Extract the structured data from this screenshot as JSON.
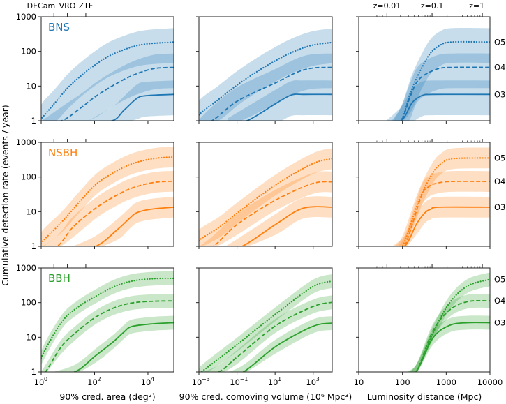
{
  "chart_data": {
    "type": "line",
    "ylabel": "Cumulative detection rate (events / year)",
    "yscale": "log",
    "ylim": [
      1,
      1000
    ],
    "yticks": [
      {
        "value": 1,
        "label": "1"
      },
      {
        "value": 10,
        "label": "10"
      },
      {
        "value": 100,
        "label": "100"
      },
      {
        "value": 1000,
        "label": "1000"
      }
    ],
    "point_format": "[log10 x, log10 rate]",
    "columns": [
      {
        "xlabel": "90% cred. area (deg²)",
        "xlim": [
          1,
          93000
        ],
        "xticks": [
          {
            "value": 1,
            "base": "10",
            "exp": "0"
          },
          {
            "value": 100,
            "base": "10",
            "exp": "2"
          },
          {
            "value": 10000,
            "base": "10",
            "exp": "4"
          }
        ],
        "top_ticks": [
          {
            "label": "DECam",
            "value": 3
          },
          {
            "label": "VRO",
            "value": 9.6
          },
          {
            "label": "ZTF",
            "value": 47
          }
        ]
      },
      {
        "xlabel": "90% cred. comoving volume (10⁶ Mpc³)",
        "xlim": [
          0.001,
          10000
        ],
        "xticks": [
          {
            "value": 0.001,
            "base": "10",
            "exp": "−3"
          },
          {
            "value": 0.1,
            "base": "10",
            "exp": "−1"
          },
          {
            "value": 10,
            "base": "10",
            "exp": "1"
          },
          {
            "value": 1000,
            "base": "10",
            "exp": "3"
          }
        ],
        "top_ticks": []
      },
      {
        "xlabel": "Luminosity distance (Mpc)",
        "xlim": [
          10,
          10000
        ],
        "xticks": [
          {
            "value": 10,
            "base": "10",
            "exp": ""
          },
          {
            "value": 100,
            "base": "100",
            "exp": ""
          },
          {
            "value": 1000,
            "base": "1000",
            "exp": ""
          },
          {
            "value": 10000,
            "base": "10000",
            "exp": ""
          }
        ],
        "top_ticks": [
          {
            "label": "z=0.01",
            "value": 44
          },
          {
            "label": "z=0.1",
            "value": 475
          },
          {
            "label": "z=1",
            "value": 6700
          }
        ]
      }
    ],
    "runs": [
      {
        "name": "O5",
        "style": "dotted"
      },
      {
        "name": "O4",
        "style": "dashed"
      },
      {
        "name": "O3",
        "style": "solid"
      }
    ],
    "rows": [
      {
        "label": "BNS",
        "color": "#1f77b4",
        "band_dex": [
          -0.6,
          0.4
        ],
        "panels": [
          {
            "O5": [
              [
                0,
                0.05
              ],
              [
                0.5,
                0.5
              ],
              [
                1,
                0.95
              ],
              [
                1.5,
                1.3
              ],
              [
                2,
                1.6
              ],
              [
                2.5,
                1.85
              ],
              [
                3,
                2.02
              ],
              [
                3.5,
                2.15
              ],
              [
                4,
                2.22
              ],
              [
                4.97,
                2.27
              ]
            ],
            "O4": [
              [
                0.77,
                0
              ],
              [
                1.5,
                0.38
              ],
              [
                2.04,
                0.7
              ],
              [
                2.7,
                1.02
              ],
              [
                3.4,
                1.3
              ],
              [
                4.2,
                1.5
              ],
              [
                4.97,
                1.54
              ]
            ],
            "O3": [
              [
                2.66,
                0
              ],
              [
                3.1,
                0.3
              ],
              [
                3.58,
                0.64
              ],
              [
                3.93,
                0.72
              ],
              [
                4.97,
                0.76
              ]
            ]
          },
          {
            "O5": [
              [
                -3,
                0.17
              ],
              [
                -2,
                0.6
              ],
              [
                -0.97,
                1.04
              ],
              [
                0,
                1.4
              ],
              [
                1.05,
                1.74
              ],
              [
                2,
                2.0
              ],
              [
                2.96,
                2.18
              ],
              [
                4,
                2.26
              ]
            ],
            "O4": [
              [
                -2.32,
                0
              ],
              [
                -0.97,
                0.57
              ],
              [
                1.05,
                1.1
              ],
              [
                2.2,
                1.41
              ],
              [
                3,
                1.52
              ],
              [
                4,
                1.54
              ]
            ],
            "O3": [
              [
                -0.48,
                0
              ],
              [
                1.05,
                0.5
              ],
              [
                1.85,
                0.74
              ],
              [
                2.5,
                0.76
              ],
              [
                4,
                0.76
              ]
            ]
          },
          {
            "O5": [
              [
                1.97,
                0
              ],
              [
                2.21,
                0.9
              ],
              [
                2.45,
                1.55
              ],
              [
                2.64,
                1.95
              ],
              [
                2.85,
                2.17
              ],
              [
                3.12,
                2.27
              ],
              [
                4,
                2.27
              ]
            ],
            "O4": [
              [
                1.97,
                0
              ],
              [
                2.15,
                0.6
              ],
              [
                2.32,
                1.1
              ],
              [
                2.53,
                1.34
              ],
              [
                2.85,
                1.51
              ],
              [
                3.2,
                1.54
              ],
              [
                4,
                1.54
              ]
            ],
            "O3": [
              [
                1.97,
                0
              ],
              [
                2.21,
                0.5
              ],
              [
                2.35,
                0.66
              ],
              [
                2.48,
                0.74
              ],
              [
                2.7,
                0.76
              ],
              [
                4,
                0.76
              ]
            ]
          }
        ]
      },
      {
        "label": "NSBH",
        "color": "#ff7f0e",
        "band_dex": [
          -0.3,
          0.3
        ],
        "panels": [
          {
            "O5": [
              [
                0,
                0.1
              ],
              [
                0.77,
                0.7
              ],
              [
                1.4,
                1.25
              ],
              [
                2.04,
                1.78
              ],
              [
                2.7,
                2.12
              ],
              [
                3.4,
                2.38
              ],
              [
                4.2,
                2.53
              ],
              [
                4.97,
                2.58
              ]
            ],
            "O4": [
              [
                0.6,
                0
              ],
              [
                1.21,
                0.57
              ],
              [
                2.04,
                1.1
              ],
              [
                2.7,
                1.42
              ],
              [
                3.4,
                1.68
              ],
              [
                4.2,
                1.84
              ],
              [
                4.97,
                1.88
              ]
            ],
            "O3": [
              [
                2.04,
                0
              ],
              [
                2.88,
                0.5
              ],
              [
                3.3,
                0.8
              ],
              [
                3.58,
                0.97
              ],
              [
                4.1,
                1.07
              ],
              [
                4.97,
                1.13
              ]
            ]
          },
          {
            "O5": [
              [
                -3,
                0.17
              ],
              [
                -1.96,
                0.54
              ],
              [
                -0.97,
                0.97
              ],
              [
                1.05,
                1.78
              ],
              [
                2.96,
                2.38
              ],
              [
                4,
                2.53
              ]
            ],
            "O4": [
              [
                -2.26,
                0
              ],
              [
                -0.97,
                0.64
              ],
              [
                1.05,
                1.34
              ],
              [
                2.96,
                1.81
              ],
              [
                4,
                1.86
              ]
            ],
            "O3": [
              [
                -0.73,
                0
              ],
              [
                1.05,
                0.64
              ],
              [
                2.47,
                1.1
              ],
              [
                4,
                1.13
              ]
            ]
          },
          {
            "O5": [
              [
                2,
                0
              ],
              [
                2.37,
                1.31
              ],
              [
                2.69,
                2.11
              ],
              [
                2.9,
                2.4
              ],
              [
                3.17,
                2.53
              ],
              [
                4,
                2.55
              ]
            ],
            "O4": [
              [
                2.05,
                0
              ],
              [
                2.43,
                1.44
              ],
              [
                2.6,
                1.72
              ],
              [
                2.75,
                1.81
              ],
              [
                3.1,
                1.87
              ],
              [
                4,
                1.87
              ]
            ],
            "O3": [
              [
                2.05,
                0
              ],
              [
                2.32,
                0.64
              ],
              [
                2.5,
                0.95
              ],
              [
                2.64,
                1.07
              ],
              [
                2.85,
                1.13
              ],
              [
                4,
                1.13
              ]
            ]
          }
        ]
      },
      {
        "label": "BBH",
        "color": "#2ca02c",
        "band_dex": [
          -0.2,
          0.2
        ],
        "panels": [
          {
            "O5": [
              [
                0,
                0.4
              ],
              [
                0.77,
                1.44
              ],
              [
                1.4,
                1.88
              ],
              [
                2.04,
                2.18
              ],
              [
                2.7,
                2.45
              ],
              [
                3.4,
                2.62
              ],
              [
                4.2,
                2.69
              ],
              [
                4.97,
                2.7
              ]
            ],
            "O4": [
              [
                0.16,
                0
              ],
              [
                0.77,
                0.74
              ],
              [
                1.4,
                1.2
              ],
              [
                2.04,
                1.58
              ],
              [
                2.7,
                1.84
              ],
              [
                3.4,
                1.99
              ],
              [
                4.2,
                2.04
              ],
              [
                4.97,
                2.05
              ]
            ],
            "O3": [
              [
                1.25,
                0
              ],
              [
                2.04,
                0.47
              ],
              [
                2.7,
                0.87
              ],
              [
                3.1,
                1.15
              ],
              [
                3.4,
                1.31
              ],
              [
                4.2,
                1.39
              ],
              [
                4.97,
                1.42
              ]
            ]
          },
          {
            "O5": [
              [
                -3,
                -0.1
              ],
              [
                -2.63,
                0.1
              ],
              [
                -0.97,
                0.8
              ],
              [
                1.05,
                1.68
              ],
              [
                2.96,
                2.45
              ],
              [
                4,
                2.62
              ]
            ],
            "O4": [
              [
                -1.96,
                0
              ],
              [
                -0.97,
                0.44
              ],
              [
                1.05,
                1.34
              ],
              [
                2.96,
                1.88
              ],
              [
                4,
                2.01
              ]
            ],
            "O3": [
              [
                -0.67,
                0
              ],
              [
                1.05,
                0.74
              ],
              [
                2.96,
                1.31
              ],
              [
                4,
                1.41
              ]
            ]
          },
          {
            "O5": [
              [
                2.31,
                0
              ],
              [
                2.69,
                1.1
              ],
              [
                3.07,
                1.98
              ],
              [
                3.49,
                2.48
              ],
              [
                4,
                2.67
              ]
            ],
            "O4": [
              [
                2.31,
                0
              ],
              [
                2.69,
                1.17
              ],
              [
                3.07,
                1.78
              ],
              [
                3.49,
                2.03
              ],
              [
                4,
                2.05
              ]
            ],
            "O3": [
              [
                2.31,
                0
              ],
              [
                2.69,
                0.97
              ],
              [
                3.07,
                1.34
              ],
              [
                3.49,
                1.42
              ],
              [
                4,
                1.42
              ]
            ]
          }
        ]
      }
    ]
  }
}
